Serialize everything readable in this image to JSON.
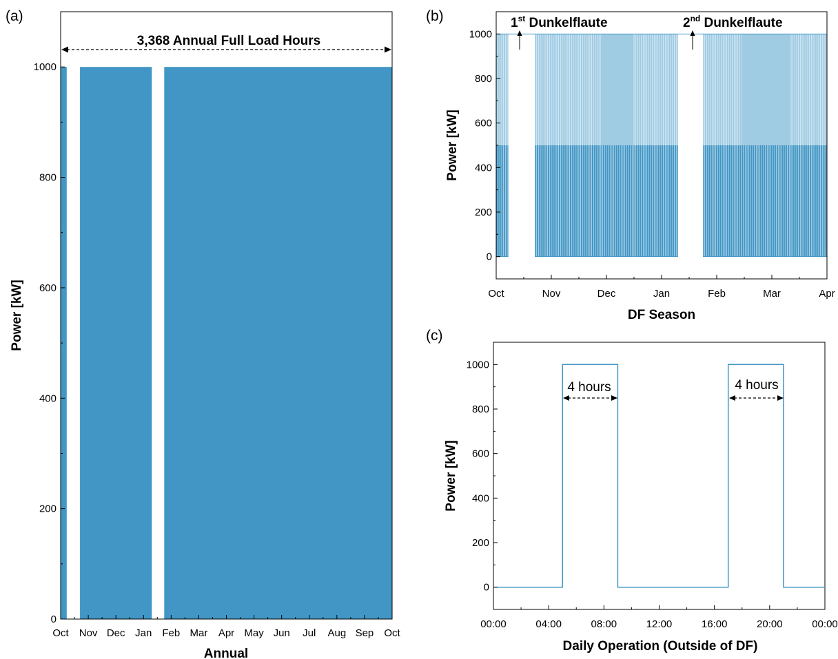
{
  "chart_data": [
    {
      "panel": "(a)",
      "type": "area",
      "xlabel": "Annual",
      "ylabel": "Power [kW]",
      "ylim": [
        0,
        1100
      ],
      "yticks": [
        "0",
        "200",
        "400",
        "600",
        "800",
        "1000"
      ],
      "xtick_labels": [
        "Oct",
        "Nov",
        "Dec",
        "Jan",
        "Feb",
        "Mar",
        "Apr",
        "May",
        "Jun",
        "Jul",
        "Aug",
        "Sep",
        "Oct"
      ],
      "annotation": "3,368 Annual Full Load Hours",
      "color": "#4196c5",
      "level_kw": 1000,
      "blocks": [
        {
          "start_month": 0.0,
          "end_month": 0.22,
          "value": 1000
        },
        {
          "start_month": 0.7,
          "end_month": 3.3,
          "value": 1000
        },
        {
          "start_month": 3.75,
          "end_month": 12.0,
          "value": 1000
        }
      ]
    },
    {
      "panel": "(b)",
      "type": "bar",
      "xlabel": "DF Season",
      "ylabel": "Power [kW]",
      "ylim": [
        -100,
        1100
      ],
      "yticks": [
        "0",
        "200",
        "400",
        "600",
        "800",
        "1000"
      ],
      "xtick_labels": [
        "Oct",
        "Nov",
        "Dec",
        "Jan",
        "Feb",
        "Mar",
        "Apr"
      ],
      "annotations": [
        {
          "num": "1",
          "sup": "st",
          "text": " Dunkelflaute"
        },
        {
          "num": "2",
          "sup": "nd",
          "text": " Dunkelflaute"
        }
      ],
      "color_dark": "#4196c5",
      "color_light": "#9fcbe3",
      "full_kw": 1000,
      "partial_kw": 500,
      "dunkelflaute_periods_month": [
        [
          0.22,
          0.7
        ],
        [
          3.3,
          3.75
        ]
      ],
      "segments": [
        {
          "start_month": 0.0,
          "end_month": 0.22,
          "upper_kw": 1000
        },
        {
          "start_month": 0.7,
          "end_month": 1.9,
          "upper_kw": 1000
        },
        {
          "start_month": 1.9,
          "end_month": 2.5,
          "upper_kw": 500
        },
        {
          "start_month": 2.5,
          "end_month": 3.3,
          "upper_kw": 1000
        },
        {
          "start_month": 3.75,
          "end_month": 4.45,
          "upper_kw": 1000
        },
        {
          "start_month": 4.45,
          "end_month": 5.35,
          "upper_kw": 500
        },
        {
          "start_month": 5.35,
          "end_month": 6.0,
          "upper_kw": 1000
        }
      ]
    },
    {
      "panel": "(c)",
      "type": "line",
      "xlabel": "Daily Operation (Outside of DF)",
      "ylabel": "Power [kW]",
      "ylim": [
        -100,
        1100
      ],
      "yticks": [
        "0",
        "200",
        "400",
        "600",
        "800",
        "1000"
      ],
      "xtick_labels": [
        "00:00",
        "04:00",
        "08:00",
        "12:00",
        "16:00",
        "20:00",
        "00:00"
      ],
      "color": "#4196c5",
      "x_hours": [
        0,
        5,
        5,
        9,
        9,
        17,
        17,
        21,
        21,
        24
      ],
      "y_kw": [
        0,
        0,
        1000,
        1000,
        0,
        0,
        1000,
        1000,
        0,
        0
      ],
      "annotations": [
        "4 hours",
        "4 hours"
      ]
    }
  ]
}
